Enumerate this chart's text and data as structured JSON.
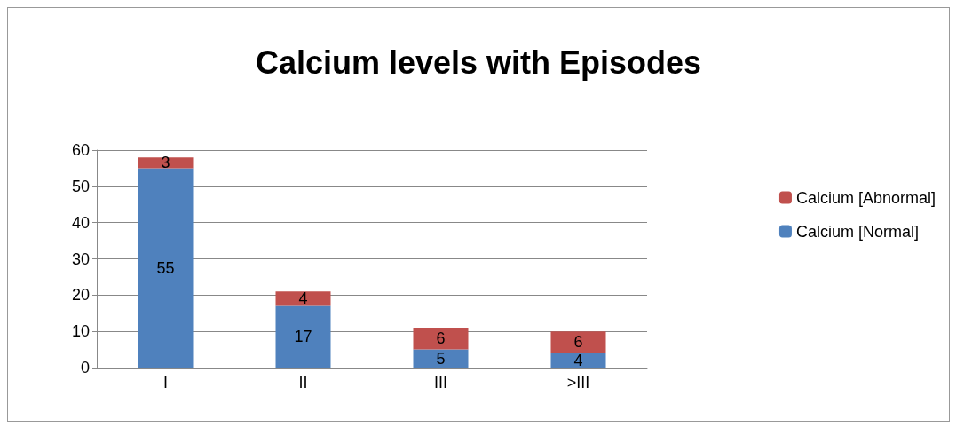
{
  "chart_data": {
    "type": "bar",
    "title": "Calcium levels with Episodes",
    "categories": [
      "I",
      "II",
      "III",
      ">III"
    ],
    "series": [
      {
        "name": "Calcium [Normal]",
        "color": "#4f81bd",
        "values": [
          55,
          17,
          5,
          4
        ]
      },
      {
        "name": "Calcium [Abnormal]",
        "color": "#c0504d",
        "values": [
          3,
          4,
          6,
          6
        ]
      }
    ],
    "stacked": true,
    "ylim": [
      0,
      60
    ],
    "yticks": [
      0,
      10,
      20,
      30,
      40,
      50,
      60
    ],
    "grid": "y",
    "legend": "right",
    "data_labels": true
  }
}
